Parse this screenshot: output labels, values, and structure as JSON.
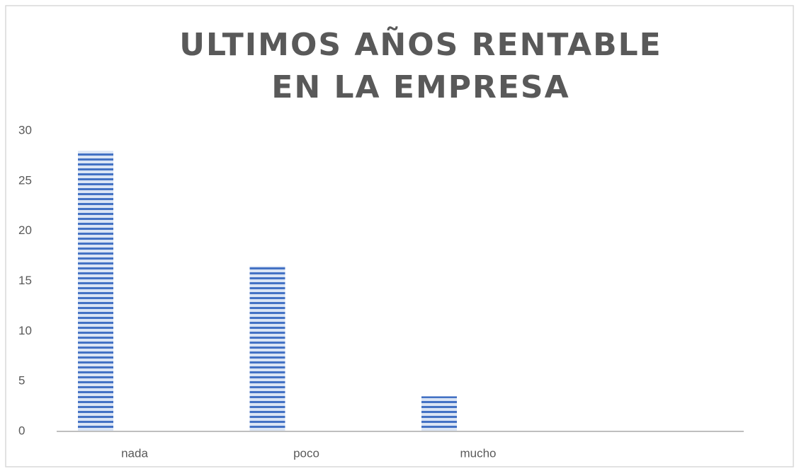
{
  "chart_data": {
    "type": "bar",
    "title": "ULTIMOS AÑOS RENTABLE EN  LA EMPRESA",
    "categories": [
      "nada",
      "poco",
      "mucho",
      null
    ],
    "values": [
      28,
      16.5,
      3.5,
      null
    ],
    "color": "#4472c4",
    "ylim": [
      0,
      30
    ],
    "yticks": [
      0,
      5,
      10,
      15,
      20,
      25,
      30
    ],
    "grid": false
  }
}
